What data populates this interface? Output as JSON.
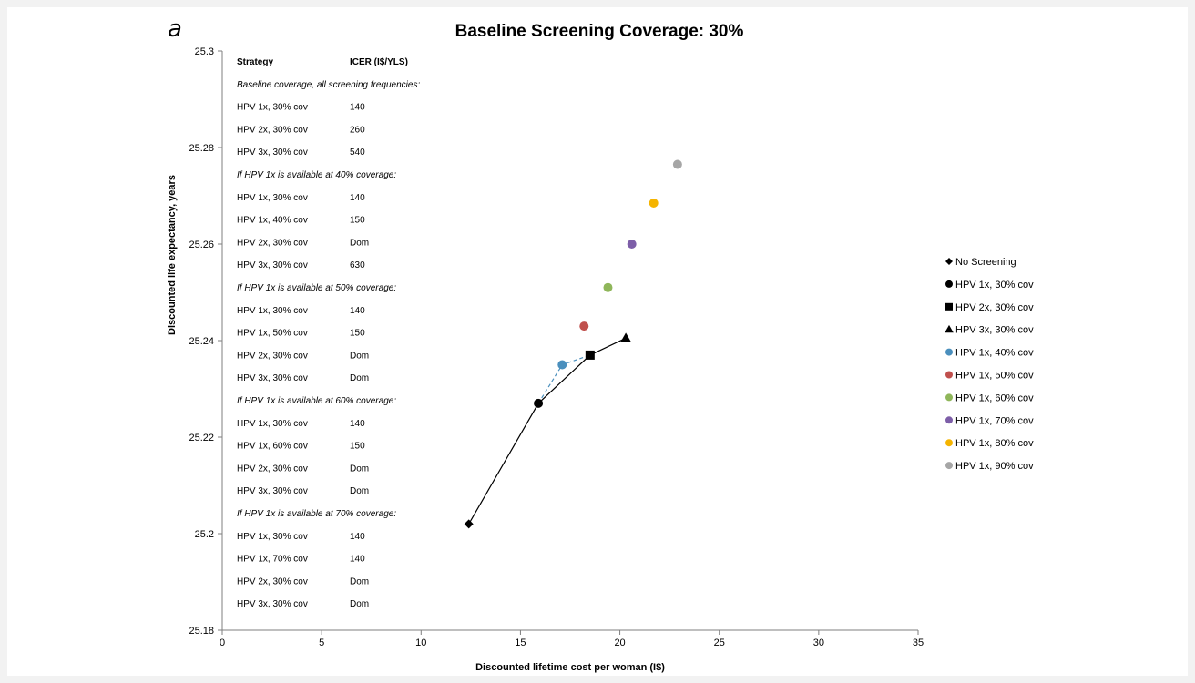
{
  "panel_letter": "a",
  "chart_data": {
    "type": "scatter",
    "title": "Baseline Screening Coverage: 30%",
    "xlabel": "Discounted lifetime cost per woman (I$)",
    "ylabel": "Discounted life expectancy, years",
    "xlim": [
      0,
      35
    ],
    "ylim": [
      25.18,
      25.3
    ],
    "xticks": [
      0,
      5,
      10,
      15,
      20,
      25,
      30,
      35
    ],
    "yticks": [
      25.18,
      25.2,
      25.22,
      25.24,
      25.26,
      25.28,
      25.3
    ],
    "ytick_labels": [
      "25.18",
      "25.2",
      "25.22",
      "25.24",
      "25.26",
      "25.28",
      "25.3"
    ],
    "grid": false,
    "legend_position": "right",
    "series": [
      {
        "name": "No Screening",
        "marker": "diamond",
        "color": "#000000",
        "x": 12.4,
        "y": 25.202
      },
      {
        "name": "HPV 1x, 30% cov",
        "marker": "circle",
        "color": "#000000",
        "x": 15.9,
        "y": 25.227
      },
      {
        "name": "HPV 2x, 30% cov",
        "marker": "square",
        "color": "#000000",
        "x": 18.5,
        "y": 25.237
      },
      {
        "name": "HPV 3x, 30% cov",
        "marker": "triangle",
        "color": "#000000",
        "x": 20.3,
        "y": 25.2405
      },
      {
        "name": "HPV 1x, 40% cov",
        "marker": "circle",
        "color": "#4a8fbd",
        "x": 17.1,
        "y": 25.235
      },
      {
        "name": "HPV 1x, 50% cov",
        "marker": "circle",
        "color": "#c0504d",
        "x": 18.2,
        "y": 25.243
      },
      {
        "name": "HPV 1x, 60% cov",
        "marker": "circle",
        "color": "#8fb65a",
        "x": 19.4,
        "y": 25.251
      },
      {
        "name": "HPV 1x, 70% cov",
        "marker": "circle",
        "color": "#7d5ea8",
        "x": 20.6,
        "y": 25.26
      },
      {
        "name": "HPV 1x, 80% cov",
        "marker": "circle",
        "color": "#f5b400",
        "x": 21.7,
        "y": 25.2685
      },
      {
        "name": "HPV 1x, 90% cov",
        "marker": "circle",
        "color": "#a6a6a6",
        "x": 22.9,
        "y": 25.2765
      }
    ],
    "frontier_solid": [
      [
        12.4,
        25.202
      ],
      [
        15.9,
        25.227
      ],
      [
        18.5,
        25.237
      ],
      [
        20.3,
        25.2405
      ]
    ],
    "frontier_dashed": [
      [
        15.9,
        25.227
      ],
      [
        17.1,
        25.235
      ],
      [
        18.5,
        25.237
      ]
    ],
    "frontier_dashed_color": "#4a8fbd"
  },
  "icer_table": {
    "headers": [
      "Strategy",
      "ICER (I$/YLS)"
    ],
    "rows": [
      {
        "section": "Baseline coverage, all screening frequencies:"
      },
      {
        "strategy": "HPV 1x, 30% cov",
        "icer": "140"
      },
      {
        "strategy": "HPV 2x, 30% cov",
        "icer": "260"
      },
      {
        "strategy": "HPV 3x, 30% cov",
        "icer": "540"
      },
      {
        "section": "If HPV 1x is available at 40% coverage:"
      },
      {
        "strategy": "HPV 1x, 30% cov",
        "icer": "140"
      },
      {
        "strategy": "HPV 1x, 40% cov",
        "icer": "150"
      },
      {
        "strategy": "HPV 2x, 30% cov",
        "icer": "Dom"
      },
      {
        "strategy": "HPV 3x, 30% cov",
        "icer": "630"
      },
      {
        "section": "If HPV 1x is available at 50% coverage:"
      },
      {
        "strategy": "HPV 1x, 30% cov",
        "icer": "140"
      },
      {
        "strategy": "HPV 1x, 50% cov",
        "icer": "150"
      },
      {
        "strategy": "HPV 2x, 30% cov",
        "icer": "Dom"
      },
      {
        "strategy": "HPV 3x, 30% cov",
        "icer": "Dom"
      },
      {
        "section": "If HPV 1x is available at 60% coverage:"
      },
      {
        "strategy": "HPV 1x, 30% cov",
        "icer": "140"
      },
      {
        "strategy": "HPV 1x, 60% cov",
        "icer": "150"
      },
      {
        "strategy": "HPV 2x, 30% cov",
        "icer": "Dom"
      },
      {
        "strategy": "HPV 3x, 30% cov",
        "icer": "Dom"
      },
      {
        "section": "If HPV 1x is available at 70% coverage:"
      },
      {
        "strategy": "HPV 1x, 30% cov",
        "icer": "140"
      },
      {
        "strategy": "HPV 1x, 70% cov",
        "icer": "140"
      },
      {
        "strategy": "HPV 2x, 30% cov",
        "icer": "Dom"
      },
      {
        "strategy": "HPV 3x, 30% cov",
        "icer": "Dom"
      }
    ]
  }
}
